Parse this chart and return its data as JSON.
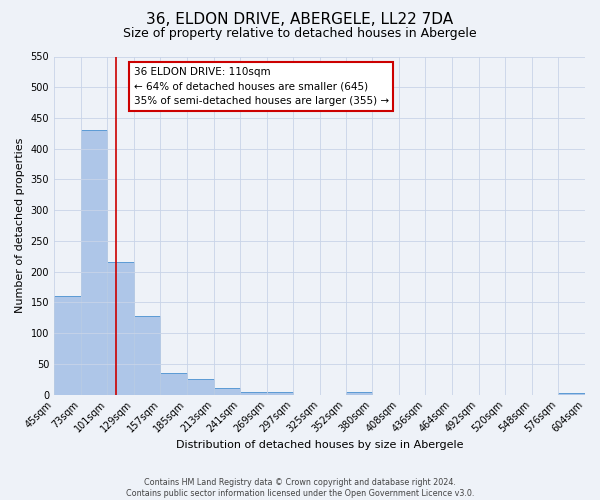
{
  "title": "36, ELDON DRIVE, ABERGELE, LL22 7DA",
  "subtitle": "Size of property relative to detached houses in Abergele",
  "xlabel": "Distribution of detached houses by size in Abergele",
  "ylabel": "Number of detached properties",
  "bar_edges": [
    45,
    73,
    101,
    129,
    157,
    185,
    213,
    241,
    269,
    297,
    325,
    352,
    380,
    408,
    436,
    464,
    492,
    520,
    548,
    576,
    604
  ],
  "bar_heights": [
    160,
    430,
    215,
    128,
    35,
    25,
    11,
    5,
    5,
    0,
    0,
    4,
    0,
    0,
    0,
    0,
    0,
    0,
    0,
    3
  ],
  "bar_color": "#aec6e8",
  "bar_edge_color": "#5b9bd5",
  "property_line_x": 110,
  "property_line_color": "#cc0000",
  "annotation_line1": "36 ELDON DRIVE: 110sqm",
  "annotation_line2": "← 64% of detached houses are smaller (645)",
  "annotation_line3": "35% of semi-detached houses are larger (355) →",
  "ylim": [
    0,
    550
  ],
  "yticks": [
    0,
    50,
    100,
    150,
    200,
    250,
    300,
    350,
    400,
    450,
    500,
    550
  ],
  "footnote": "Contains HM Land Registry data © Crown copyright and database right 2024.\nContains public sector information licensed under the Open Government Licence v3.0.",
  "bg_color": "#eef2f8",
  "grid_color": "#c8d4e8",
  "title_fontsize": 11,
  "subtitle_fontsize": 9,
  "axis_label_fontsize": 8,
  "tick_fontsize": 7,
  "tick_labels": [
    "45sqm",
    "73sqm",
    "101sqm",
    "129sqm",
    "157sqm",
    "185sqm",
    "213sqm",
    "241sqm",
    "269sqm",
    "297sqm",
    "325sqm",
    "352sqm",
    "380sqm",
    "408sqm",
    "436sqm",
    "464sqm",
    "492sqm",
    "520sqm",
    "548sqm",
    "576sqm",
    "604sqm"
  ]
}
